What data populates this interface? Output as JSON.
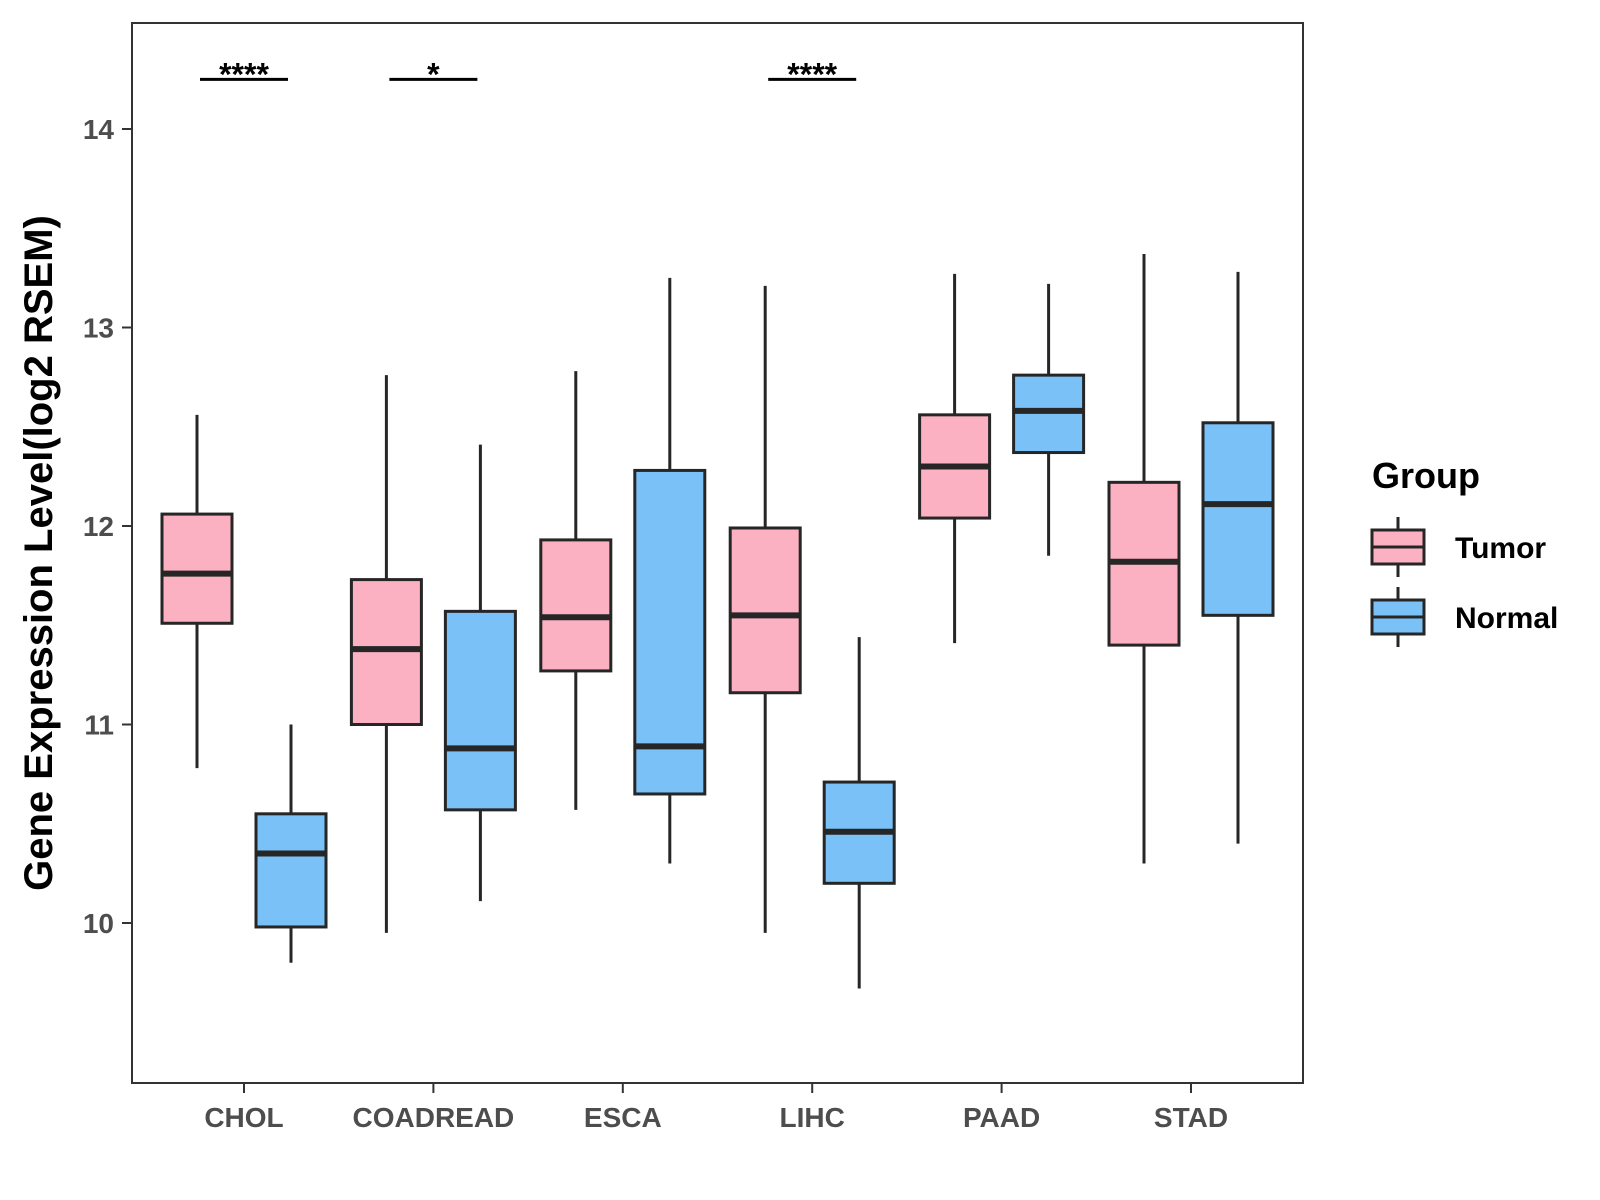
{
  "chart_data": {
    "type": "boxplot",
    "title": "",
    "xlabel": "",
    "ylabel": "Gene Expression Level(log2 RSEM)",
    "ylim": [
      9.2,
      14.5
    ],
    "yticks": [
      10,
      11,
      12,
      13,
      14
    ],
    "categories": [
      "CHOL",
      "COADREAD",
      "ESCA",
      "LIHC",
      "PAAD",
      "STAD"
    ],
    "groups": [
      {
        "name": "Tumor",
        "color": "#FBB1C2"
      },
      {
        "name": "Normal",
        "color": "#7AC1F7"
      }
    ],
    "boxes": [
      {
        "category": "CHOL",
        "group": "Tumor",
        "min": 10.78,
        "q1": 11.51,
        "median": 11.76,
        "q3": 12.06,
        "max": 12.56
      },
      {
        "category": "CHOL",
        "group": "Normal",
        "min": 9.8,
        "q1": 9.98,
        "median": 10.35,
        "q3": 10.55,
        "max": 11.0
      },
      {
        "category": "COADREAD",
        "group": "Tumor",
        "min": 9.95,
        "q1": 11.0,
        "median": 11.38,
        "q3": 11.73,
        "max": 12.76
      },
      {
        "category": "COADREAD",
        "group": "Normal",
        "min": 10.11,
        "q1": 10.57,
        "median": 10.88,
        "q3": 11.57,
        "max": 12.41
      },
      {
        "category": "ESCA",
        "group": "Tumor",
        "min": 10.57,
        "q1": 11.27,
        "median": 11.54,
        "q3": 11.93,
        "max": 12.78
      },
      {
        "category": "ESCA",
        "group": "Normal",
        "min": 10.3,
        "q1": 10.65,
        "median": 10.89,
        "q3": 12.28,
        "max": 13.25
      },
      {
        "category": "LIHC",
        "group": "Tumor",
        "min": 9.95,
        "q1": 11.16,
        "median": 11.55,
        "q3": 11.99,
        "max": 13.21
      },
      {
        "category": "LIHC",
        "group": "Normal",
        "min": 9.67,
        "q1": 10.2,
        "median": 10.46,
        "q3": 10.71,
        "max": 11.44
      },
      {
        "category": "PAAD",
        "group": "Tumor",
        "min": 11.41,
        "q1": 12.04,
        "median": 12.3,
        "q3": 12.56,
        "max": 13.27
      },
      {
        "category": "PAAD",
        "group": "Normal",
        "min": 11.85,
        "q1": 12.37,
        "median": 12.58,
        "q3": 12.76,
        "max": 13.22
      },
      {
        "category": "STAD",
        "group": "Tumor",
        "min": 10.3,
        "q1": 11.4,
        "median": 11.82,
        "q3": 12.22,
        "max": 13.37
      },
      {
        "category": "STAD",
        "group": "Normal",
        "min": 10.4,
        "q1": 11.55,
        "median": 12.11,
        "q3": 12.52,
        "max": 13.28
      }
    ],
    "significance": [
      {
        "category": "CHOL",
        "label": "****",
        "y": 14.25
      },
      {
        "category": "COADREAD",
        "label": "*",
        "y": 14.25
      },
      {
        "category": "LIHC",
        "label": "****",
        "y": 14.25
      }
    ],
    "legend": {
      "title": "Group",
      "position": "right",
      "entries": [
        "Tumor",
        "Normal"
      ]
    }
  }
}
